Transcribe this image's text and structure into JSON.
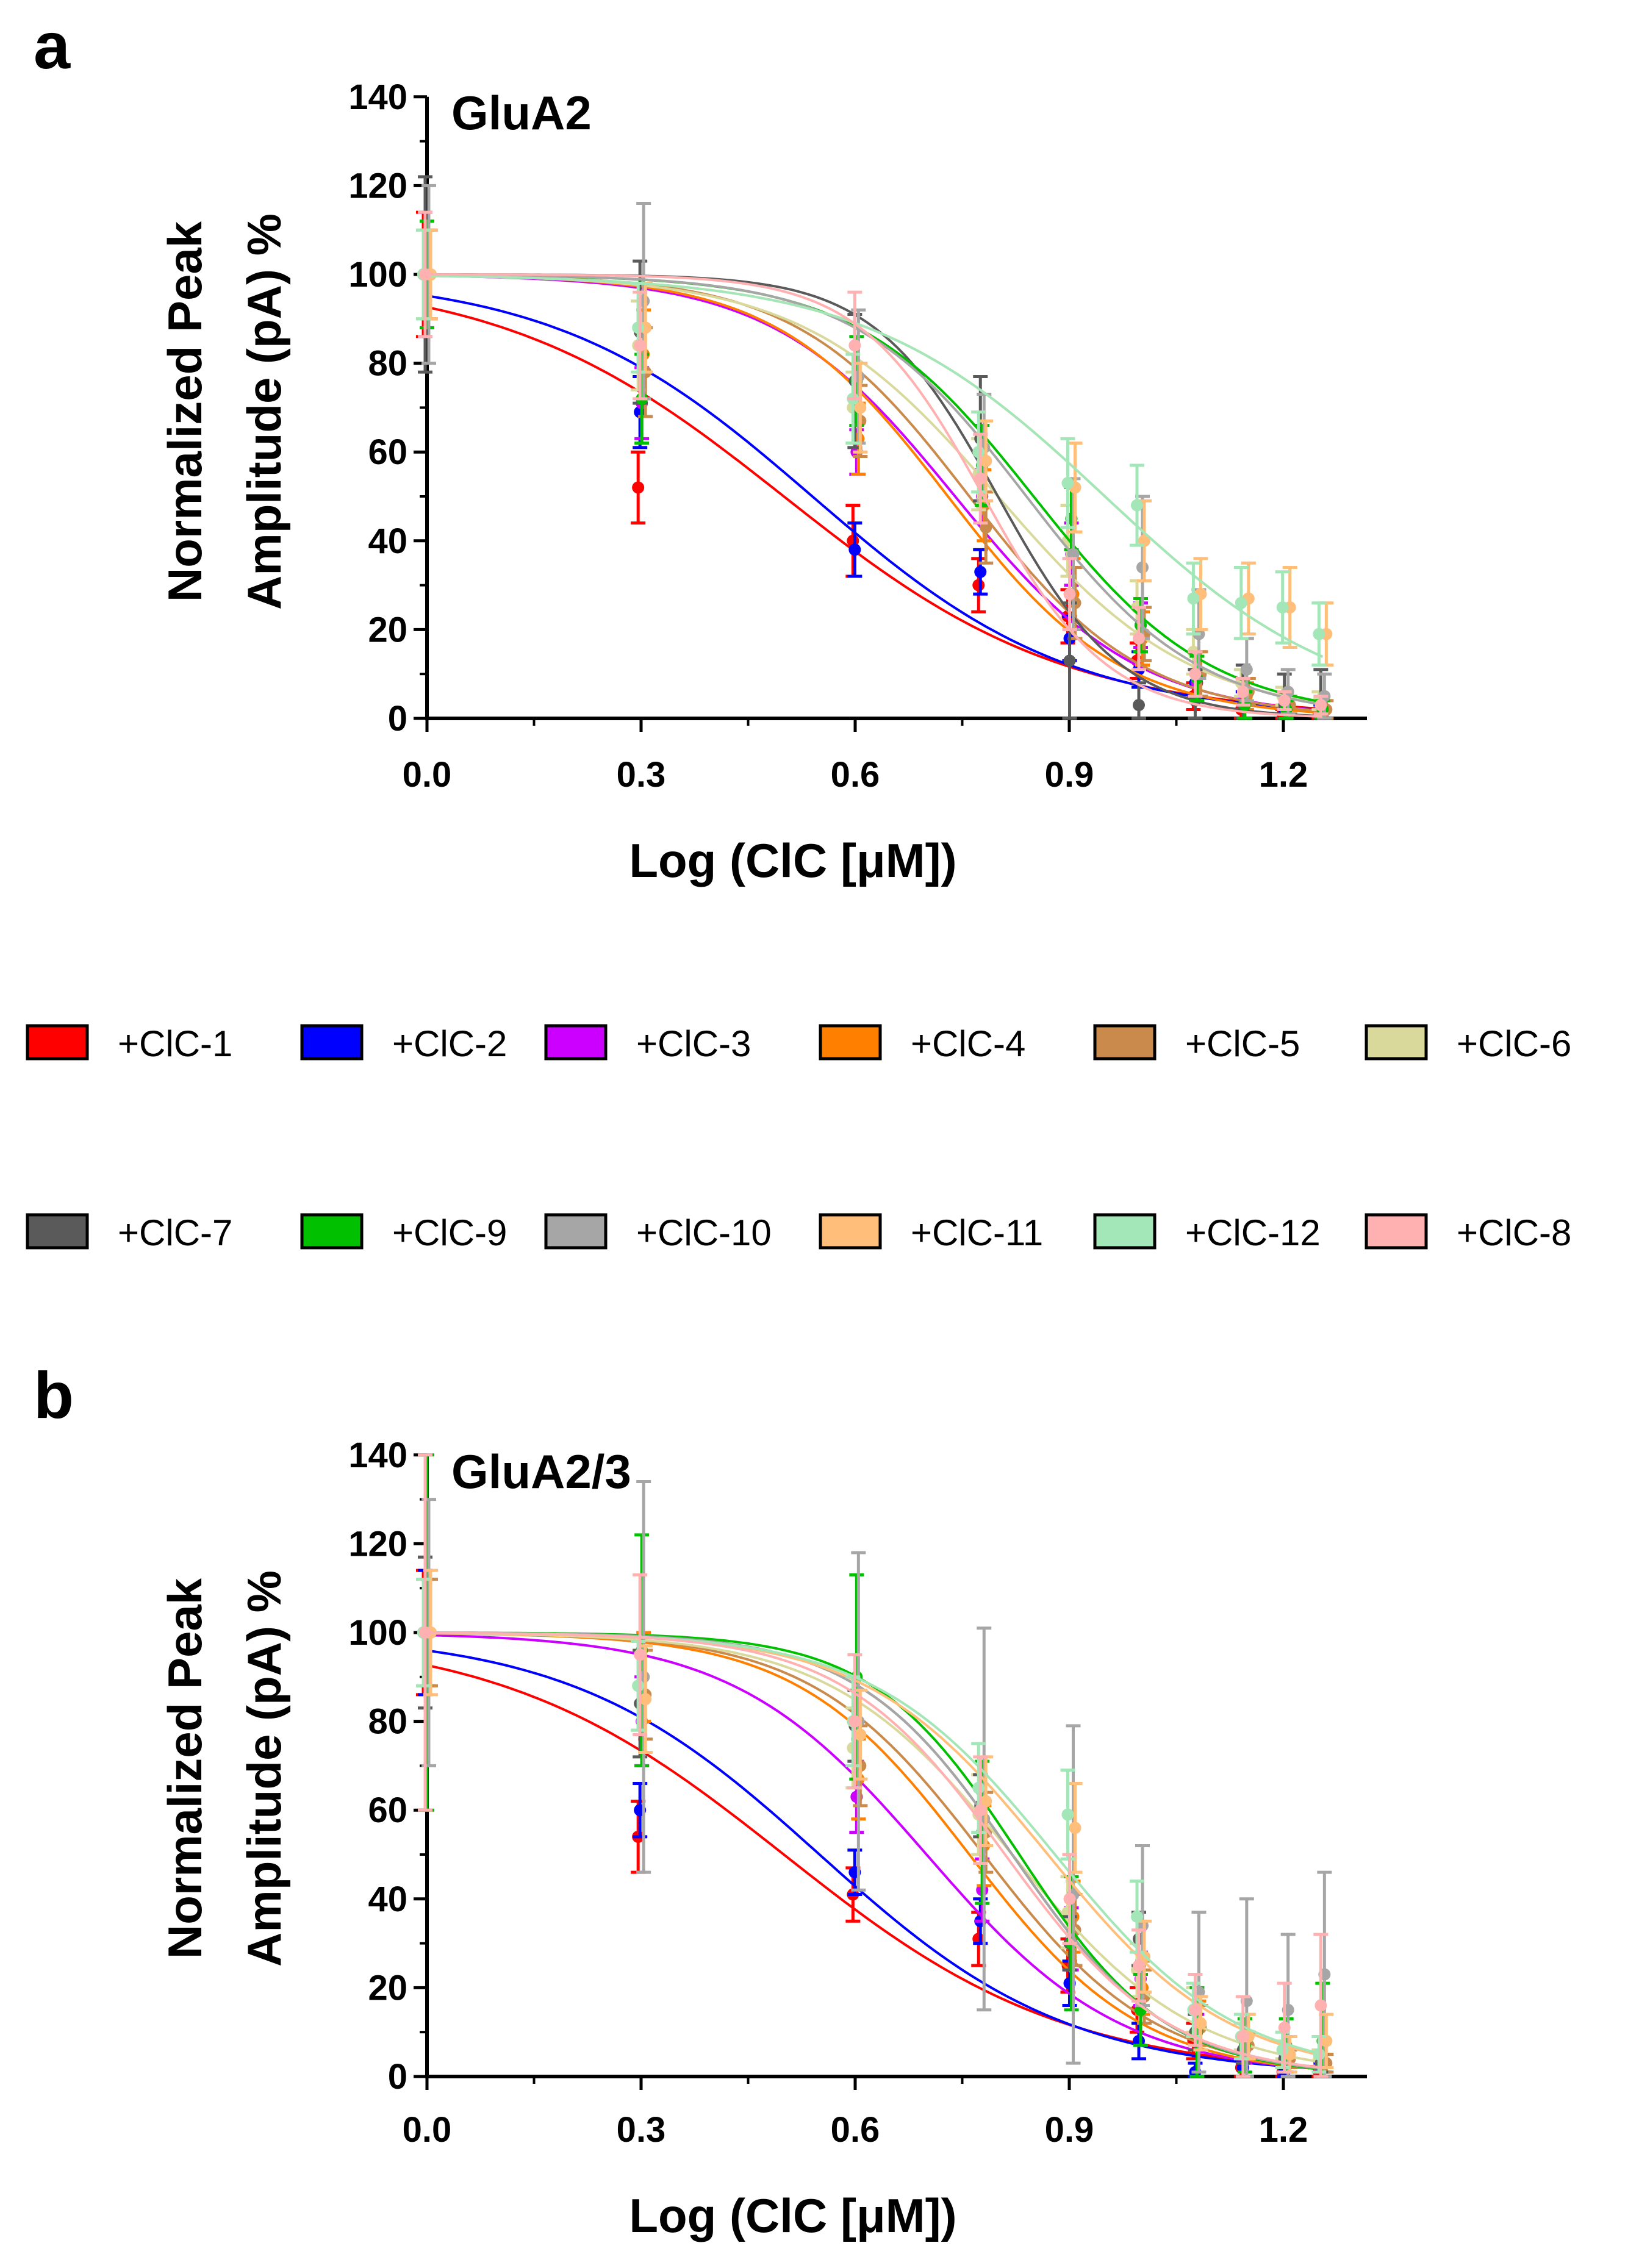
{
  "chart_data": [
    {
      "type": "line",
      "panel": "a",
      "title": "GluA2",
      "xlabel": "Log (ClC [μM])",
      "ylabel_line1": "Normalized Peak",
      "ylabel_line2": "Amplitude (pA) %",
      "xlim": [
        0.0,
        1.3
      ],
      "ylim": [
        0,
        140
      ],
      "xticks": [
        "0.0",
        "0.3",
        "0.6",
        "0.9",
        "1.2"
      ],
      "xtick_values": [
        0.0,
        0.3,
        0.6,
        0.9,
        1.2
      ],
      "yticks": [
        "0",
        "20",
        "40",
        "60",
        "80",
        "100",
        "120",
        "140"
      ],
      "ytick_values": [
        0,
        20,
        40,
        60,
        80,
        100,
        120,
        140
      ],
      "x": [
        0.0,
        0.301,
        0.602,
        0.778,
        0.903,
        1.0,
        1.079,
        1.146,
        1.204,
        1.255
      ],
      "series": [
        {
          "name": "+ClC-1",
          "color": "#ff0000",
          "top": 100,
          "logIC50": 0.5,
          "hill": 2.2,
          "values": [
            100,
            52,
            40,
            30,
            23,
            13,
            5,
            2,
            1,
            1
          ],
          "errors": [
            14,
            8,
            8,
            6,
            6,
            4,
            3,
            2,
            1,
            1
          ]
        },
        {
          "name": "+ClC-2",
          "color": "#0000ff",
          "top": 100,
          "logIC50": 0.54,
          "hill": 2.4,
          "values": [
            100,
            69,
            38,
            33,
            18,
            11,
            8,
            4,
            2,
            2
          ],
          "errors": [
            14,
            8,
            6,
            5,
            5,
            4,
            3,
            2,
            1,
            1
          ]
        },
        {
          "name": "+ClC-3",
          "color": "#cc00ff",
          "top": 100,
          "logIC50": 0.74,
          "hill": 3.4,
          "values": [
            100,
            71,
            60,
            50,
            37,
            21,
            8,
            4,
            2,
            1
          ],
          "errors": [
            12,
            8,
            5,
            6,
            7,
            5,
            3,
            2,
            1,
            1
          ]
        },
        {
          "name": "+ClC-4",
          "color": "#ff8000",
          "top": 100,
          "logIC50": 0.73,
          "hill": 3.6,
          "values": [
            100,
            82,
            63,
            48,
            28,
            18,
            10,
            5,
            3,
            2
          ],
          "errors": [
            10,
            10,
            8,
            8,
            8,
            6,
            5,
            3,
            2,
            2
          ]
        },
        {
          "name": "+ClC-5",
          "color": "#c98a4b",
          "top": 100,
          "logIC50": 0.76,
          "hill": 3.6,
          "values": [
            100,
            78,
            67,
            43,
            26,
            19,
            10,
            6,
            3,
            2
          ],
          "errors": [
            10,
            10,
            8,
            8,
            8,
            6,
            5,
            3,
            2,
            2
          ]
        },
        {
          "name": "+ClC-6",
          "color": "#d9d99c",
          "top": 100,
          "logIC50": 0.8,
          "hill": 3.2,
          "values": [
            100,
            84,
            70,
            55,
            40,
            25,
            15,
            8,
            5,
            4
          ],
          "errors": [
            10,
            10,
            8,
            8,
            8,
            6,
            5,
            3,
            2,
            2
          ]
        },
        {
          "name": "+ClC-7",
          "color": "#5a5a5a",
          "top": 100,
          "logIC50": 0.8,
          "hill": 5.0,
          "values": [
            100,
            87,
            76,
            63,
            13,
            3,
            4,
            3,
            3,
            3
          ],
          "errors": [
            22,
            16,
            15,
            14,
            13,
            5,
            7,
            9,
            7,
            8
          ]
        },
        {
          "name": "+ClC-9",
          "color": "#00c000",
          "top": 100,
          "logIC50": 0.85,
          "hill": 3.5,
          "values": [
            100,
            72,
            76,
            57,
            45,
            21,
            9,
            3,
            2,
            2
          ],
          "errors": [
            12,
            10,
            10,
            9,
            7,
            6,
            5,
            3,
            2,
            2
          ]
        },
        {
          "name": "+ClC-10",
          "color": "#a6a6a6",
          "top": 100,
          "logIC50": 0.84,
          "hill": 3.6,
          "values": [
            100,
            94,
            77,
            61,
            37,
            34,
            19,
            11,
            6,
            5
          ],
          "errors": [
            20,
            22,
            15,
            12,
            17,
            16,
            10,
            7,
            5,
            5
          ]
        },
        {
          "name": "+ClC-11",
          "color": "#ffbe7a",
          "top": 100,
          "logIC50": 0.95,
          "hill": 2.6,
          "values": [
            100,
            88,
            70,
            58,
            52,
            40,
            28,
            27,
            25,
            19
          ],
          "errors": [
            10,
            10,
            10,
            9,
            10,
            9,
            8,
            8,
            9,
            7
          ]
        },
        {
          "name": "+ClC-12",
          "color": "#a3e6b8",
          "top": 100,
          "logIC50": 0.95,
          "hill": 2.6,
          "values": [
            100,
            88,
            72,
            60,
            53,
            48,
            27,
            26,
            25,
            19
          ],
          "errors": [
            10,
            10,
            10,
            9,
            10,
            9,
            8,
            8,
            8,
            7
          ]
        },
        {
          "name": "+ClC-8",
          "color": "#ffb0b0",
          "top": 100,
          "logIC50": 0.78,
          "hill": 5.0,
          "values": [
            100,
            84,
            84,
            54,
            28,
            18,
            10,
            6,
            4,
            3
          ],
          "errors": [
            14,
            12,
            12,
            10,
            8,
            7,
            5,
            3,
            2,
            2
          ]
        }
      ]
    },
    {
      "type": "line",
      "panel": "b",
      "title": "GluA2/3",
      "xlabel": "Log (ClC [μM])",
      "ylabel_line1": "Normalized Peak",
      "ylabel_line2": "Amplitude (pA) %",
      "xlim": [
        0.0,
        1.3
      ],
      "ylim": [
        0,
        140
      ],
      "xticks": [
        "0.0",
        "0.3",
        "0.6",
        "0.9",
        "1.2"
      ],
      "xtick_values": [
        0.0,
        0.3,
        0.6,
        0.9,
        1.2
      ],
      "yticks": [
        "0",
        "20",
        "40",
        "60",
        "80",
        "100",
        "120",
        "140"
      ],
      "ytick_values": [
        0,
        20,
        40,
        60,
        80,
        100,
        120,
        140
      ],
      "x": [
        0.0,
        0.301,
        0.602,
        0.778,
        0.903,
        1.0,
        1.079,
        1.146,
        1.204,
        1.255
      ],
      "series": [
        {
          "name": "+ClC-1",
          "color": "#ff0000",
          "top": 100,
          "logIC50": 0.5,
          "hill": 2.2,
          "values": [
            100,
            54,
            41,
            31,
            25,
            15,
            8,
            2,
            1,
            1
          ],
          "errors": [
            14,
            8,
            6,
            6,
            6,
            5,
            4,
            2,
            1,
            1
          ]
        },
        {
          "name": "+ClC-2",
          "color": "#0000ff",
          "top": 100,
          "logIC50": 0.55,
          "hill": 2.5,
          "values": [
            100,
            60,
            46,
            35,
            21,
            8,
            1,
            2,
            1,
            2
          ],
          "errors": [
            14,
            6,
            5,
            5,
            5,
            4,
            2,
            2,
            1,
            1
          ]
        },
        {
          "name": "+ClC-3",
          "color": "#cc00ff",
          "top": 100,
          "logIC50": 0.7,
          "hill": 3.2,
          "values": [
            100,
            80,
            63,
            42,
            31,
            22,
            10,
            6,
            3,
            3
          ],
          "errors": [
            12,
            10,
            8,
            7,
            7,
            6,
            4,
            3,
            2,
            2
          ]
        },
        {
          "name": "+ClC-4",
          "color": "#ff8000",
          "top": 100,
          "logIC50": 0.76,
          "hill": 3.6,
          "values": [
            100,
            90,
            67,
            52,
            36,
            20,
            12,
            7,
            4,
            3
          ],
          "errors": [
            12,
            10,
            9,
            9,
            8,
            6,
            5,
            3,
            2,
            2
          ]
        },
        {
          "name": "+ClC-5",
          "color": "#c98a4b",
          "top": 100,
          "logIC50": 0.78,
          "hill": 3.6,
          "values": [
            100,
            86,
            70,
            55,
            33,
            18,
            11,
            7,
            4,
            3
          ],
          "errors": [
            12,
            10,
            9,
            9,
            8,
            6,
            5,
            3,
            2,
            2
          ]
        },
        {
          "name": "+ClC-6",
          "color": "#d9d99c",
          "top": 100,
          "logIC50": 0.82,
          "hill": 3.4,
          "values": [
            100,
            88,
            74,
            59,
            37,
            24,
            15,
            9,
            6,
            4
          ],
          "errors": [
            12,
            10,
            9,
            9,
            8,
            6,
            5,
            3,
            2,
            2
          ]
        },
        {
          "name": "+ClC-7",
          "color": "#5a5a5a",
          "top": 100,
          "logIC50": 0.82,
          "hill": 4.0,
          "values": [
            100,
            84,
            79,
            61,
            30,
            31,
            10,
            6,
            4,
            3
          ],
          "errors": [
            17,
            12,
            8,
            7,
            6,
            6,
            4,
            3,
            2,
            2
          ]
        },
        {
          "name": "+ClC-9",
          "color": "#00c000",
          "top": 100,
          "logIC50": 0.83,
          "hill": 4.2,
          "values": [
            100,
            96,
            90,
            55,
            30,
            15,
            10,
            7,
            7,
            8
          ],
          "errors": [
            40,
            26,
            23,
            16,
            15,
            8,
            10,
            6,
            6,
            13
          ]
        },
        {
          "name": "+ClC-10",
          "color": "#a6a6a6",
          "top": 100,
          "logIC50": 0.82,
          "hill": 4.0,
          "values": [
            100,
            90,
            80,
            58,
            41,
            34,
            19,
            17,
            15,
            23
          ],
          "errors": [
            30,
            44,
            38,
            43,
            38,
            18,
            18,
            23,
            17,
            23
          ]
        },
        {
          "name": "+ClC-11",
          "color": "#ffbe7a",
          "top": 100,
          "logIC50": 0.87,
          "hill": 3.4,
          "values": [
            100,
            85,
            77,
            62,
            56,
            27,
            12,
            9,
            5,
            8
          ],
          "errors": [
            14,
            12,
            10,
            10,
            10,
            8,
            6,
            5,
            4,
            6
          ]
        },
        {
          "name": "+ClC-12",
          "color": "#a3e6b8",
          "top": 100,
          "logIC50": 0.88,
          "hill": 3.4,
          "values": [
            100,
            88,
            80,
            65,
            59,
            36,
            15,
            9,
            6,
            5
          ],
          "errors": [
            12,
            10,
            10,
            10,
            10,
            8,
            6,
            5,
            4,
            4
          ]
        },
        {
          "name": "+ClC-8",
          "color": "#ffb0b0",
          "top": 100,
          "logIC50": 0.81,
          "hill": 3.8,
          "values": [
            100,
            95,
            80,
            60,
            40,
            25,
            15,
            9,
            11,
            16
          ],
          "errors": [
            40,
            18,
            15,
            12,
            10,
            8,
            8,
            9,
            10,
            16
          ]
        }
      ]
    }
  ],
  "legend": {
    "row1": [
      {
        "label": "+ClC-1",
        "color": "#ff0000"
      },
      {
        "label": "+ClC-2",
        "color": "#0000ff"
      },
      {
        "label": "+ClC-3",
        "color": "#cc00ff"
      },
      {
        "label": "+ClC-4",
        "color": "#ff8000"
      },
      {
        "label": "+ClC-5",
        "color": "#c98a4b"
      },
      {
        "label": "+ClC-6",
        "color": "#d9d99c"
      }
    ],
    "row2": [
      {
        "label": "+ClC-7",
        "color": "#5a5a5a"
      },
      {
        "label": "+ClC-9",
        "color": "#00c000"
      },
      {
        "label": "+ClC-10",
        "color": "#a6a6a6"
      },
      {
        "label": "+ClC-11",
        "color": "#ffbe7a"
      },
      {
        "label": "+ClC-12",
        "color": "#a3e6b8"
      },
      {
        "label": "+ClC-8",
        "color": "#ffb0b0"
      }
    ]
  }
}
